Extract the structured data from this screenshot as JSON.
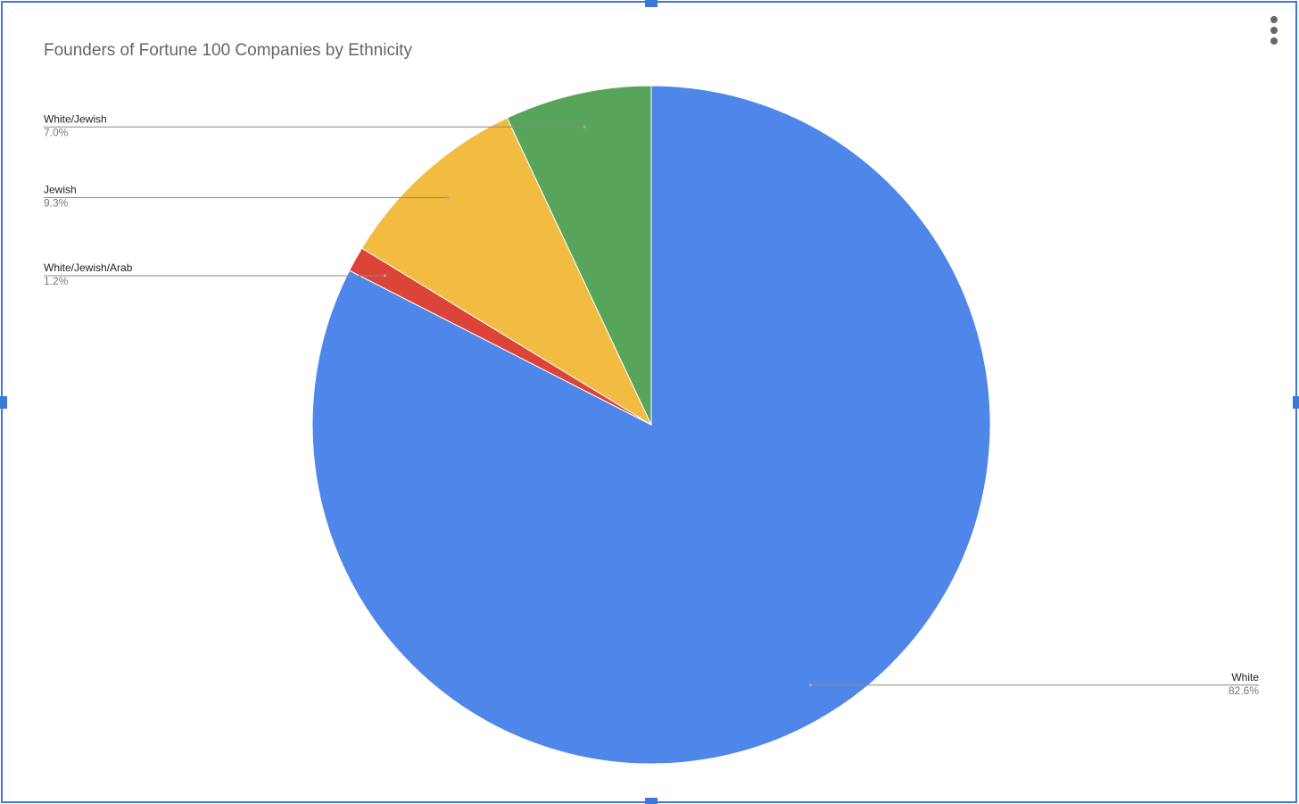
{
  "chart_data": {
    "type": "pie",
    "title": "Founders of Fortune 100 Companies by Ethnicity",
    "categories": [
      "White",
      "White/Jewish/Arab",
      "Jewish",
      "White/Jewish"
    ],
    "values": [
      82.6,
      1.2,
      9.3,
      7.0
    ],
    "value_labels": [
      "82.6%",
      "1.2%",
      "9.3%",
      "7.0%"
    ],
    "colors": [
      "#4f86ea",
      "#db4437",
      "#f1bc41",
      "#57a55a"
    ]
  }
}
